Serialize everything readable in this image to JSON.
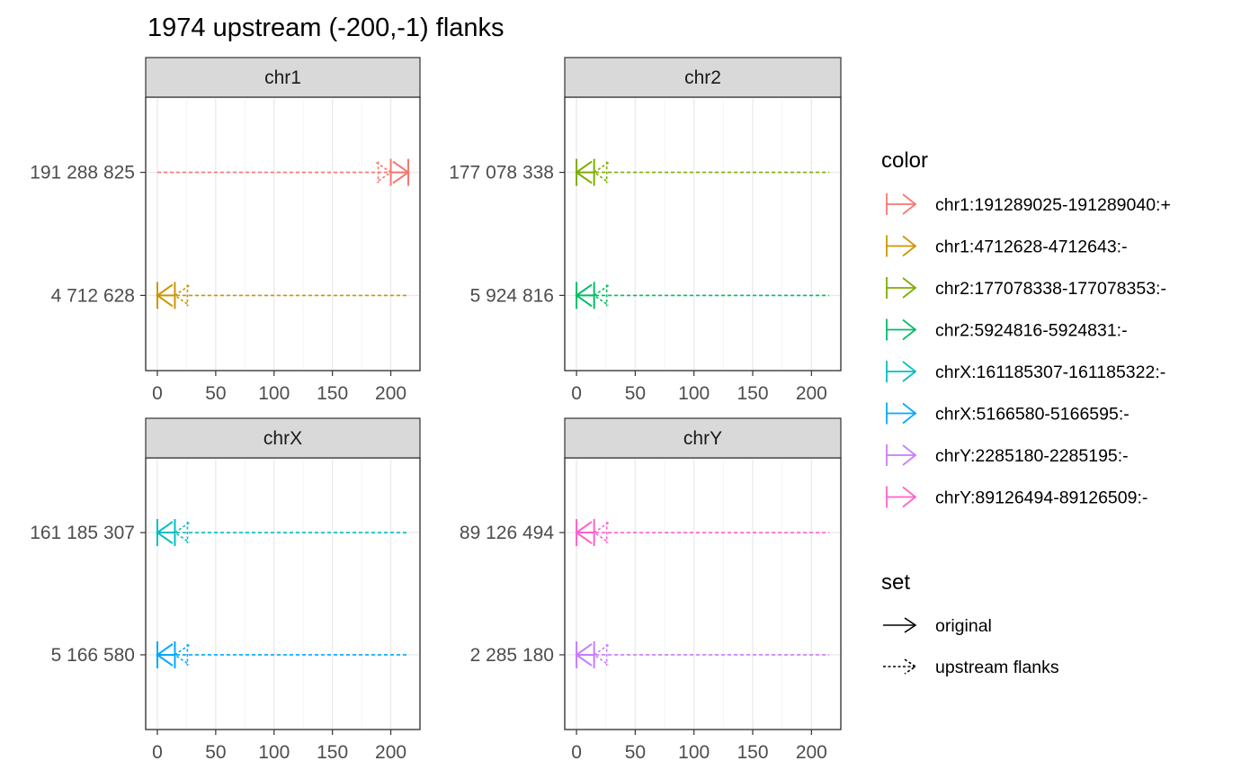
{
  "chart_data": {
    "type": "faceted-segment",
    "title": "1974 upstream (-200,-1) flanks",
    "x_ticks": [
      0,
      50,
      100,
      150,
      200
    ],
    "xlim": [
      -10,
      225
    ],
    "panels": [
      {
        "strip": "chr1",
        "y_labels": [
          "191 288 825",
          "4 712 628"
        ],
        "rows": [
          {
            "y_label": "191 288 825",
            "color_key": "chr1:191289025-191289040:+",
            "color": "#F8766D",
            "flank": {
              "x_start": 0,
              "x_end": 215,
              "strand": "+",
              "head_at": 215
            },
            "original": {
              "x_start": 200,
              "x_end": 215,
              "strand": "+"
            }
          },
          {
            "y_label": "4 712 628",
            "color_key": "chr1:4712628-4712643:-",
            "color": "#CD9600",
            "flank": {
              "x_start": 0,
              "x_end": 215,
              "strand": "-",
              "head_at": 15
            },
            "original": {
              "x_start": 0,
              "x_end": 15,
              "strand": "-"
            }
          }
        ]
      },
      {
        "strip": "chr2",
        "y_labels": [
          "177 078 338",
          "5 924 816"
        ],
        "rows": [
          {
            "y_label": "177 078 338",
            "color_key": "chr2:177078338-177078353:-",
            "color": "#7CAE00",
            "flank": {
              "x_start": 0,
              "x_end": 215,
              "strand": "-",
              "head_at": 15
            },
            "original": {
              "x_start": 0,
              "x_end": 15,
              "strand": "-"
            }
          },
          {
            "y_label": "5 924 816",
            "color_key": "chr2:5924816-5924831:-",
            "color": "#00BE67",
            "flank": {
              "x_start": 0,
              "x_end": 215,
              "strand": "-",
              "head_at": 15
            },
            "original": {
              "x_start": 0,
              "x_end": 15,
              "strand": "-"
            }
          }
        ]
      },
      {
        "strip": "chrX",
        "y_labels": [
          "161 185 307",
          "5 166 580"
        ],
        "rows": [
          {
            "y_label": "161 185 307",
            "color_key": "chrX:161185307-161185322:-",
            "color": "#00BFC4",
            "flank": {
              "x_start": 0,
              "x_end": 215,
              "strand": "-",
              "head_at": 15
            },
            "original": {
              "x_start": 0,
              "x_end": 15,
              "strand": "-"
            }
          },
          {
            "y_label": "5 166 580",
            "color_key": "chrX:5166580-5166595:-",
            "color": "#00A9FF",
            "flank": {
              "x_start": 0,
              "x_end": 215,
              "strand": "-",
              "head_at": 15
            },
            "original": {
              "x_start": 0,
              "x_end": 15,
              "strand": "-"
            }
          }
        ]
      },
      {
        "strip": "chrY",
        "y_labels": [
          "89 126 494",
          "2 285 180"
        ],
        "rows": [
          {
            "y_label": "89 126 494",
            "color_key": "chrY:89126494-89126509:-",
            "color": "#FF61CC",
            "flank": {
              "x_start": 0,
              "x_end": 215,
              "strand": "-",
              "head_at": 15
            },
            "original": {
              "x_start": 0,
              "x_end": 15,
              "strand": "-"
            }
          },
          {
            "y_label": "2 285 180",
            "color_key": "chrY:2285180-2285195:-",
            "color": "#C77CFF",
            "flank": {
              "x_start": 0,
              "x_end": 215,
              "strand": "-",
              "head_at": 15
            },
            "original": {
              "x_start": 0,
              "x_end": 15,
              "strand": "-"
            }
          }
        ]
      }
    ],
    "legend": {
      "placement": "right",
      "color": {
        "title": "color",
        "entries": [
          {
            "label": "chr1:191289025-191289040:+",
            "color": "#F8766D"
          },
          {
            "label": "chr1:4712628-4712643:-",
            "color": "#CD9600"
          },
          {
            "label": "chr2:177078338-177078353:-",
            "color": "#7CAE00"
          },
          {
            "label": "chr2:5924816-5924831:-",
            "color": "#00BE67"
          },
          {
            "label": "chrX:161185307-161185322:-",
            "color": "#00BFC4"
          },
          {
            "label": "chrX:5166580-5166595:-",
            "color": "#00A9FF"
          },
          {
            "label": "chrY:2285180-2285195:-",
            "color": "#C77CFF"
          },
          {
            "label": "chrY:89126494-89126509:-",
            "color": "#FF61CC"
          }
        ]
      },
      "set": {
        "title": "set",
        "entries": [
          {
            "label": "original",
            "linetype": "solid"
          },
          {
            "label": "upstream flanks",
            "linetype": "dashed"
          }
        ]
      }
    },
    "grid": true
  }
}
